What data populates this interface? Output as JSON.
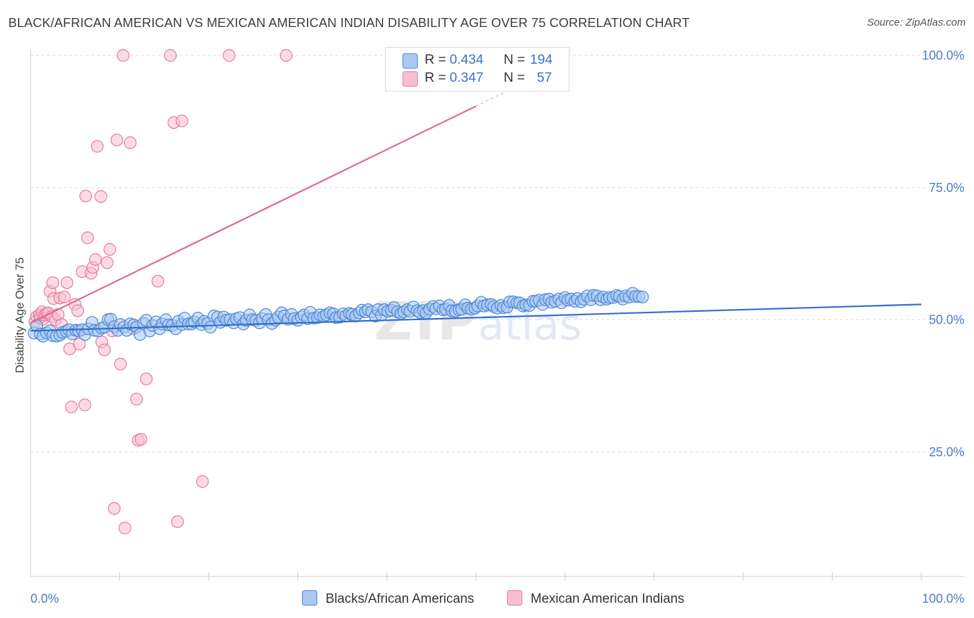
{
  "title": "BLACK/AFRICAN AMERICAN VS MEXICAN AMERICAN INDIAN DISABILITY AGE OVER 75 CORRELATION CHART",
  "source": "Source: ZipAtlas.com",
  "colors": {
    "blue_fill": "#a9c8f2",
    "blue_stroke": "#4a86d6",
    "blue_line": "#2f6fd1",
    "pink_fill": "#f7bfd0",
    "pink_stroke": "#e8799c",
    "pink_line": "#e2668f",
    "grid": "#dddddd",
    "tick_text": "#4a7cc7"
  },
  "legend": {
    "rows": [
      {
        "r_label": "R =",
        "r_value": "0.434",
        "n_label": "N =",
        "n_value": "194"
      },
      {
        "r_label": "R =",
        "r_value": "0.347",
        "n_label": "N =",
        "n_value": "57"
      }
    ]
  },
  "series_names": [
    "Blacks/African Americans",
    "Mexican American Indians"
  ],
  "chart_data": {
    "type": "scatter",
    "title": "BLACK/AFRICAN AMERICAN VS MEXICAN AMERICAN INDIAN DISABILITY AGE OVER 75 CORRELATION CHART",
    "xlabel": "",
    "ylabel": "Disability Age Over 75",
    "xlim": [
      0,
      100
    ],
    "ylim": [
      0,
      100
    ],
    "x_tick_labels": [
      "0.0%",
      "100.0%"
    ],
    "y_tick_values": [
      25,
      50,
      75,
      100
    ],
    "y_tick_labels": [
      "25.0%",
      "50.0%",
      "75.0%",
      "100.0%"
    ],
    "grid": true,
    "series": [
      {
        "name": "Blacks/African Americans",
        "r": 0.434,
        "n": 194,
        "trend": {
          "x": [
            0,
            100
          ],
          "y": [
            47.9,
            52.9
          ]
        },
        "points": [
          [
            0.4,
            47.5
          ],
          [
            0.7,
            48.9
          ],
          [
            1.1,
            47.3
          ],
          [
            1.4,
            46.9
          ],
          [
            1.8,
            47.5
          ],
          [
            2.2,
            47.9
          ],
          [
            2.5,
            47.0
          ],
          [
            2.9,
            46.9
          ],
          [
            3.3,
            47.1
          ],
          [
            3.6,
            47.6
          ],
          [
            4.0,
            47.8
          ],
          [
            4.3,
            48.1
          ],
          [
            4.7,
            47.3
          ],
          [
            5.1,
            48.0
          ],
          [
            5.4,
            47.9
          ],
          [
            5.8,
            48.1
          ],
          [
            6.1,
            47.2
          ],
          [
            6.5,
            48.3
          ],
          [
            6.9,
            49.5
          ],
          [
            7.2,
            48.0
          ],
          [
            7.6,
            47.9
          ],
          [
            8.0,
            48.4
          ],
          [
            8.3,
            48.6
          ],
          [
            8.7,
            50.0
          ],
          [
            9.0,
            50.1
          ],
          [
            9.4,
            48.7
          ],
          [
            9.8,
            48.0
          ],
          [
            10.1,
            49.1
          ],
          [
            10.5,
            48.6
          ],
          [
            10.8,
            48.0
          ],
          [
            11.2,
            49.2
          ],
          [
            11.6,
            49.0
          ],
          [
            11.9,
            48.6
          ],
          [
            12.3,
            47.2
          ],
          [
            12.7,
            49.3
          ],
          [
            13.0,
            49.9
          ],
          [
            13.4,
            47.9
          ],
          [
            13.7,
            48.9
          ],
          [
            14.1,
            49.6
          ],
          [
            14.5,
            48.3
          ],
          [
            14.8,
            49.2
          ],
          [
            15.2,
            50.0
          ],
          [
            15.5,
            49.0
          ],
          [
            15.9,
            48.9
          ],
          [
            16.3,
            48.3
          ],
          [
            16.6,
            49.7
          ],
          [
            17.0,
            49.1
          ],
          [
            17.3,
            50.3
          ],
          [
            17.7,
            49.2
          ],
          [
            18.1,
            49.2
          ],
          [
            18.4,
            49.6
          ],
          [
            18.8,
            50.3
          ],
          [
            19.2,
            49.1
          ],
          [
            19.5,
            49.7
          ],
          [
            19.9,
            49.3
          ],
          [
            20.2,
            48.6
          ],
          [
            20.6,
            50.7
          ],
          [
            21.0,
            50.5
          ],
          [
            21.3,
            49.5
          ],
          [
            21.7,
            50.5
          ],
          [
            22.0,
            49.9
          ],
          [
            22.4,
            50.0
          ],
          [
            22.8,
            49.4
          ],
          [
            23.1,
            50.2
          ],
          [
            23.5,
            50.4
          ],
          [
            23.9,
            49.2
          ],
          [
            24.2,
            49.9
          ],
          [
            24.6,
            50.9
          ],
          [
            24.9,
            50.0
          ],
          [
            25.3,
            49.9
          ],
          [
            25.7,
            49.4
          ],
          [
            26.0,
            50.2
          ],
          [
            26.4,
            51.0
          ],
          [
            26.7,
            50.0
          ],
          [
            27.1,
            49.3
          ],
          [
            27.5,
            49.9
          ],
          [
            27.8,
            50.5
          ],
          [
            28.2,
            51.3
          ],
          [
            28.5,
            50.7
          ],
          [
            28.9,
            50.1
          ],
          [
            29.3,
            51.0
          ],
          [
            29.6,
            50.2
          ],
          [
            30.0,
            49.9
          ],
          [
            30.4,
            50.5
          ],
          [
            30.7,
            50.9
          ],
          [
            31.1,
            50.2
          ],
          [
            31.4,
            51.4
          ],
          [
            31.8,
            50.3
          ],
          [
            32.2,
            50.4
          ],
          [
            32.5,
            50.9
          ],
          [
            32.9,
            50.6
          ],
          [
            33.2,
            50.9
          ],
          [
            33.6,
            51.3
          ],
          [
            34.0,
            51.1
          ],
          [
            34.3,
            50.4
          ],
          [
            34.7,
            50.5
          ],
          [
            35.1,
            51.1
          ],
          [
            35.4,
            50.7
          ],
          [
            35.8,
            51.2
          ],
          [
            36.1,
            51.0
          ],
          [
            36.5,
            50.7
          ],
          [
            36.9,
            51.3
          ],
          [
            37.2,
            51.8
          ],
          [
            37.6,
            51.5
          ],
          [
            37.9,
            51.9
          ],
          [
            38.3,
            51.5
          ],
          [
            38.7,
            50.7
          ],
          [
            39.0,
            51.9
          ],
          [
            39.4,
            50.9
          ],
          [
            39.7,
            51.9
          ],
          [
            40.1,
            51.6
          ],
          [
            40.5,
            51.8
          ],
          [
            40.8,
            52.3
          ],
          [
            41.2,
            51.5
          ],
          [
            41.6,
            51.2
          ],
          [
            41.9,
            51.5
          ],
          [
            42.3,
            51.9
          ],
          [
            42.6,
            51.6
          ],
          [
            43.0,
            52.4
          ],
          [
            43.4,
            51.7
          ],
          [
            43.7,
            51.4
          ],
          [
            44.1,
            51.7
          ],
          [
            44.4,
            51.3
          ],
          [
            44.8,
            52.0
          ],
          [
            45.2,
            52.5
          ],
          [
            45.5,
            52.1
          ],
          [
            45.9,
            52.6
          ],
          [
            46.3,
            51.9
          ],
          [
            46.6,
            52.0
          ],
          [
            47.0,
            52.7
          ],
          [
            47.3,
            51.7
          ],
          [
            47.7,
            51.6
          ],
          [
            48.1,
            51.9
          ],
          [
            48.4,
            52.0
          ],
          [
            48.8,
            52.8
          ],
          [
            49.1,
            52.2
          ],
          [
            49.5,
            52.0
          ],
          [
            49.9,
            52.2
          ],
          [
            50.2,
            52.6
          ],
          [
            50.6,
            53.3
          ],
          [
            50.9,
            52.6
          ],
          [
            51.3,
            52.8
          ],
          [
            51.7,
            52.9
          ],
          [
            52.0,
            52.5
          ],
          [
            52.4,
            52.2
          ],
          [
            52.8,
            52.7
          ],
          [
            53.1,
            52.3
          ],
          [
            53.5,
            52.4
          ],
          [
            53.8,
            53.4
          ],
          [
            54.2,
            53.4
          ],
          [
            54.6,
            53.2
          ],
          [
            54.9,
            53.2
          ],
          [
            55.3,
            52.6
          ],
          [
            55.6,
            52.8
          ],
          [
            56.0,
            52.7
          ],
          [
            56.4,
            53.5
          ],
          [
            56.7,
            53.5
          ],
          [
            57.1,
            53.7
          ],
          [
            57.5,
            52.9
          ],
          [
            57.8,
            53.8
          ],
          [
            58.2,
            53.9
          ],
          [
            58.5,
            53.3
          ],
          [
            58.9,
            53.5
          ],
          [
            59.3,
            53.9
          ],
          [
            59.6,
            53.2
          ],
          [
            60.0,
            54.2
          ],
          [
            60.3,
            53.7
          ],
          [
            60.7,
            53.9
          ],
          [
            61.1,
            53.5
          ],
          [
            61.4,
            54.0
          ],
          [
            61.8,
            53.4
          ],
          [
            62.1,
            53.9
          ],
          [
            62.5,
            54.5
          ],
          [
            62.9,
            53.8
          ],
          [
            63.2,
            54.6
          ],
          [
            63.6,
            54.5
          ],
          [
            64.0,
            53.8
          ],
          [
            64.3,
            54.3
          ],
          [
            64.7,
            53.9
          ],
          [
            65.0,
            54.2
          ],
          [
            65.4,
            54.2
          ],
          [
            65.8,
            54.6
          ],
          [
            66.1,
            54.4
          ],
          [
            66.5,
            53.9
          ],
          [
            66.8,
            54.5
          ],
          [
            67.2,
            54.3
          ],
          [
            67.6,
            55.0
          ],
          [
            67.9,
            54.4
          ],
          [
            68.3,
            54.4
          ],
          [
            68.7,
            54.3
          ]
        ]
      },
      {
        "name": "Mexican American Indians",
        "r": 0.347,
        "n": 57,
        "trend": {
          "x": [
            0,
            50
          ],
          "y": [
            49.4,
            90.4
          ],
          "dashed_extension": {
            "x": [
              50,
              55
            ],
            "y": [
              90.4,
              94.5
            ]
          }
        },
        "points": [
          [
            0.5,
            49.6
          ],
          [
            0.7,
            50.6
          ],
          [
            1.0,
            50.9
          ],
          [
            1.1,
            50.4
          ],
          [
            1.3,
            51.5
          ],
          [
            1.4,
            50.1
          ],
          [
            1.6,
            50.9
          ],
          [
            1.8,
            51.2
          ],
          [
            2.0,
            51.3
          ],
          [
            2.2,
            55.4
          ],
          [
            2.4,
            50.6
          ],
          [
            2.5,
            57.0
          ],
          [
            2.6,
            54.0
          ],
          [
            2.8,
            50.0
          ],
          [
            3.1,
            51.0
          ],
          [
            3.3,
            54.1
          ],
          [
            3.5,
            49.1
          ],
          [
            3.8,
            54.3
          ],
          [
            4.1,
            57.0
          ],
          [
            4.4,
            44.5
          ],
          [
            4.6,
            33.5
          ],
          [
            5.0,
            52.9
          ],
          [
            5.3,
            51.7
          ],
          [
            5.5,
            45.4
          ],
          [
            5.8,
            59.1
          ],
          [
            6.1,
            33.9
          ],
          [
            6.2,
            73.4
          ],
          [
            6.4,
            65.5
          ],
          [
            6.8,
            58.8
          ],
          [
            7.0,
            59.9
          ],
          [
            7.3,
            61.4
          ],
          [
            7.5,
            82.8
          ],
          [
            7.9,
            73.3
          ],
          [
            8.0,
            45.8
          ],
          [
            8.3,
            44.3
          ],
          [
            8.6,
            60.8
          ],
          [
            8.9,
            63.3
          ],
          [
            9.2,
            47.9
          ],
          [
            9.4,
            14.3
          ],
          [
            9.7,
            84.0
          ],
          [
            10.1,
            41.6
          ],
          [
            10.4,
            100.0
          ],
          [
            10.6,
            10.6
          ],
          [
            11.2,
            83.5
          ],
          [
            11.5,
            48.3
          ],
          [
            11.9,
            35.0
          ],
          [
            12.1,
            27.2
          ],
          [
            12.4,
            27.4
          ],
          [
            13.0,
            38.8
          ],
          [
            14.3,
            57.3
          ],
          [
            15.7,
            100.0
          ],
          [
            16.1,
            87.3
          ],
          [
            16.5,
            11.8
          ],
          [
            17.0,
            87.6
          ],
          [
            19.3,
            19.4
          ],
          [
            22.3,
            100.0
          ],
          [
            28.7,
            100.0
          ]
        ]
      }
    ]
  }
}
